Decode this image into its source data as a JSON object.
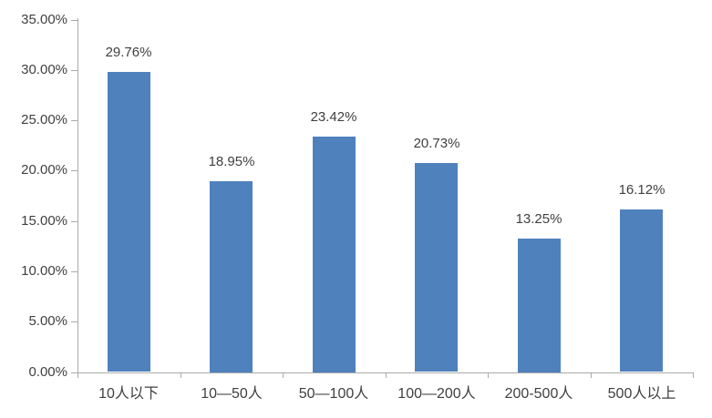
{
  "chart_data": {
    "type": "bar",
    "title": "",
    "categories": [
      "10人以下",
      "10—50人",
      "50—100人",
      "100—200人",
      "200-500人",
      "500人以上"
    ],
    "values": [
      29.76,
      18.95,
      23.42,
      20.73,
      13.25,
      16.12
    ],
    "data_labels": [
      "29.76%",
      "18.95%",
      "23.42%",
      "20.73%",
      "13.25%",
      "16.12%"
    ],
    "yticks": [
      "0.00%",
      "5.00%",
      "10.00%",
      "15.00%",
      "20.00%",
      "25.00%",
      "30.00%",
      "35.00%"
    ],
    "ytick_values": [
      0,
      5,
      10,
      15,
      20,
      25,
      30,
      35
    ],
    "ylim": [
      0,
      35
    ],
    "xlabel": "",
    "ylabel": "",
    "grid": false,
    "legend": "none",
    "bar_color": "#4f81bd",
    "axis_color": "#aaaaaa",
    "text_color": "#3f3f3f"
  }
}
